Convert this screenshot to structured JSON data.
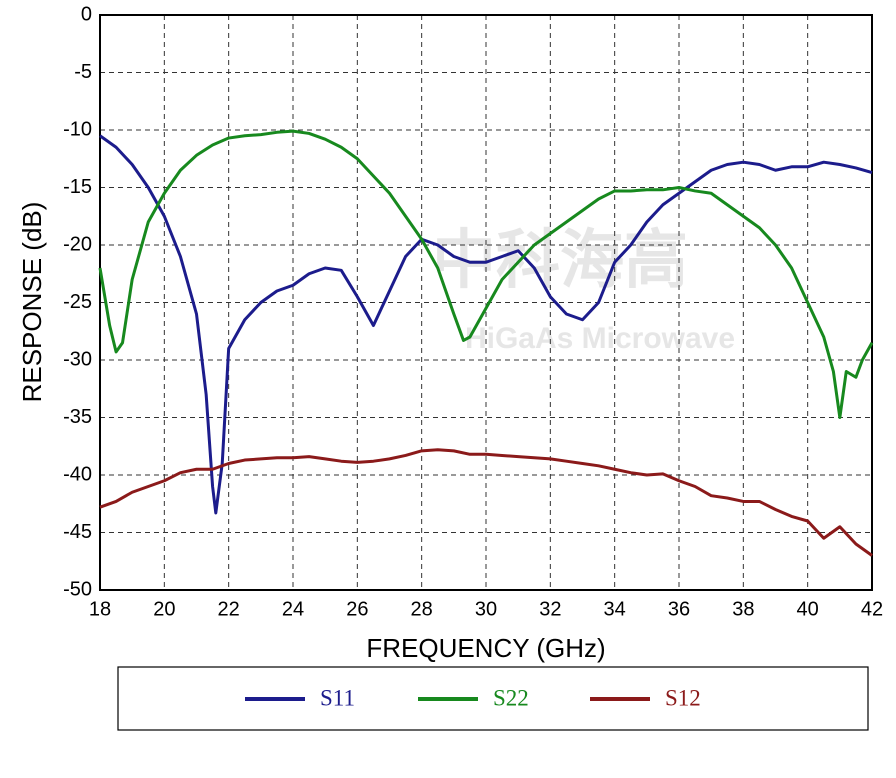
{
  "chart_data": {
    "type": "line",
    "xlabel": "FREQUENCY (GHz)",
    "ylabel": "RESPONSE (dB)",
    "watermark": [
      "中科海高",
      "HiGaAs Microwave"
    ],
    "xlim": [
      18,
      42
    ],
    "ylim": [
      -50,
      0
    ],
    "xticks": [
      18,
      20,
      22,
      24,
      26,
      28,
      30,
      32,
      34,
      36,
      38,
      40,
      42
    ],
    "yticks": [
      -50,
      -45,
      -40,
      -35,
      -30,
      -25,
      -20,
      -15,
      -10,
      -5,
      0
    ],
    "grid": true,
    "series": [
      {
        "name": "S11",
        "color": "#1c1c8c",
        "x": [
          18,
          18.5,
          19,
          19.5,
          20,
          20.5,
          21,
          21.3,
          21.5,
          21.6,
          21.8,
          22,
          22.5,
          23,
          23.5,
          24,
          24.5,
          25,
          25.5,
          26,
          26.5,
          27,
          27.5,
          28,
          28.5,
          29,
          29.5,
          30,
          30.5,
          31,
          31.5,
          32,
          32.5,
          33,
          33.5,
          34,
          34.5,
          35,
          35.5,
          36,
          36.5,
          37,
          37.5,
          38,
          38.5,
          39,
          39.5,
          40,
          40.5,
          41,
          41.5,
          42
        ],
        "values": [
          -10.5,
          -11.5,
          -13,
          -15,
          -17.5,
          -21,
          -26,
          -33,
          -41,
          -43.3,
          -39,
          -29,
          -26.5,
          -25,
          -24,
          -23.5,
          -22.5,
          -22,
          -22.2,
          -24.5,
          -27,
          -24,
          -21,
          -19.5,
          -20,
          -21,
          -21.5,
          -21.5,
          -21,
          -20.5,
          -22,
          -24.5,
          -26,
          -26.5,
          -25,
          -21.5,
          -20,
          -18,
          -16.5,
          -15.5,
          -14.5,
          -13.5,
          -13,
          -12.8,
          -13,
          -13.5,
          -13.2,
          -13.2,
          -12.8,
          -13,
          -13.3,
          -13.7
        ]
      },
      {
        "name": "S22",
        "color": "#17891e",
        "x": [
          18,
          18.3,
          18.5,
          18.7,
          19,
          19.5,
          20,
          20.5,
          21,
          21.5,
          22,
          22.5,
          23,
          23.5,
          24,
          24.5,
          25,
          25.5,
          26,
          26.5,
          27,
          27.5,
          28,
          28.5,
          29,
          29.3,
          29.5,
          30,
          30.5,
          31,
          31.5,
          32,
          32.5,
          33,
          33.5,
          34,
          34.5,
          35,
          35.5,
          36,
          36.5,
          37,
          37.5,
          38,
          38.5,
          39,
          39.5,
          40,
          40.5,
          40.8,
          41,
          41.2,
          41.5,
          41.7,
          42
        ],
        "values": [
          -22,
          -27,
          -29.3,
          -28.5,
          -23,
          -18,
          -15.5,
          -13.5,
          -12.2,
          -11.3,
          -10.7,
          -10.5,
          -10.4,
          -10.2,
          -10.1,
          -10.3,
          -10.8,
          -11.5,
          -12.5,
          -14,
          -15.5,
          -17.5,
          -19.5,
          -22,
          -26,
          -28.3,
          -28,
          -25.5,
          -23,
          -21.5,
          -20,
          -19,
          -18,
          -17,
          -16,
          -15.3,
          -15.3,
          -15.2,
          -15.2,
          -15,
          -15.3,
          -15.5,
          -16.5,
          -17.5,
          -18.5,
          -20,
          -22,
          -25,
          -28,
          -31,
          -35,
          -31,
          -31.5,
          -30,
          -28.5
        ]
      },
      {
        "name": "S12",
        "color": "#8b1a1a",
        "x": [
          18,
          18.5,
          19,
          19.5,
          20,
          20.5,
          21,
          21.5,
          22,
          22.5,
          23,
          23.5,
          24,
          24.5,
          25,
          25.5,
          26,
          26.5,
          27,
          27.5,
          28,
          28.5,
          29,
          29.5,
          30,
          30.5,
          31,
          31.5,
          32,
          32.5,
          33,
          33.5,
          34,
          34.5,
          35,
          35.5,
          36,
          36.5,
          37,
          37.5,
          38,
          38.5,
          39,
          39.5,
          40,
          40.5,
          41,
          41.5,
          42
        ],
        "values": [
          -42.8,
          -42.3,
          -41.5,
          -41,
          -40.5,
          -39.8,
          -39.5,
          -39.5,
          -39,
          -38.7,
          -38.6,
          -38.5,
          -38.5,
          -38.4,
          -38.6,
          -38.8,
          -38.9,
          -38.8,
          -38.6,
          -38.3,
          -37.9,
          -37.8,
          -37.9,
          -38.2,
          -38.2,
          -38.3,
          -38.4,
          -38.5,
          -38.6,
          -38.8,
          -39,
          -39.2,
          -39.5,
          -39.8,
          -40,
          -39.9,
          -40.5,
          -41,
          -41.8,
          -42,
          -42.3,
          -42.3,
          -43,
          -43.6,
          -44,
          -45.5,
          -44.5,
          -46,
          -47
        ]
      }
    ]
  }
}
